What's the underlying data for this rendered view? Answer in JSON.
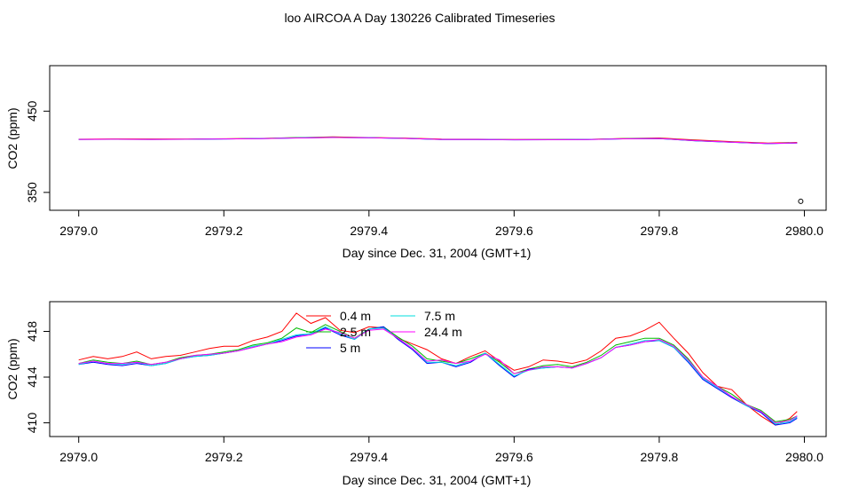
{
  "title": "loo AIRCOA A  Day 130226  Calibrated Timeseries",
  "chart_data": [
    {
      "type": "line",
      "title": "",
      "xlabel": "Day since Dec. 31, 2004 (GMT+1)",
      "ylabel": "CO2 (ppm)",
      "xlim": [
        2978.96,
        2980.03
      ],
      "ylim": [
        328,
        506
      ],
      "xticks": [
        2979.0,
        2979.2,
        2979.4,
        2979.6,
        2979.8,
        2980.0
      ],
      "xtick_labels": [
        "2979.0",
        "2979.2",
        "2979.4",
        "2979.6",
        "2979.8",
        "2980.0"
      ],
      "yticks": [
        350,
        450
      ],
      "ytick_labels": [
        "350",
        "450"
      ],
      "grid": false,
      "outlier": {
        "x": 2979.995,
        "y": 339
      },
      "series": [
        {
          "color": "#ff0000",
          "x": [
            2979.0,
            2979.05,
            2979.1,
            2979.15,
            2979.2,
            2979.25,
            2979.3,
            2979.35,
            2979.4,
            2979.45,
            2979.5,
            2979.55,
            2979.6,
            2979.65,
            2979.7,
            2979.75,
            2979.8,
            2979.85,
            2979.9,
            2979.95,
            2979.99
          ],
          "y": [
            415.5,
            415.8,
            415.8,
            415.6,
            416.0,
            416.4,
            417.3,
            418.3,
            417.6,
            416.9,
            415.6,
            415.5,
            415.0,
            415.2,
            415.3,
            416.3,
            417.0,
            414.5,
            412.5,
            410.8,
            411.5
          ]
        },
        {
          "color": "#00bb00",
          "x": [
            2979.0,
            2979.05,
            2979.1,
            2979.15,
            2979.2,
            2979.25,
            2979.3,
            2979.35,
            2979.4,
            2979.45,
            2979.5,
            2979.55,
            2979.6,
            2979.65,
            2979.7,
            2979.75,
            2979.8,
            2979.85,
            2979.9,
            2979.95,
            2979.99
          ],
          "y": [
            415.3,
            415.5,
            415.4,
            415.5,
            415.9,
            416.3,
            417.6,
            417.9,
            417.4,
            416.6,
            415.2,
            415.3,
            414.9,
            415.0,
            415.2,
            416.1,
            416.4,
            413.8,
            411.9,
            410.2,
            411.0
          ]
        },
        {
          "color": "#0000ff",
          "x": [
            2979.0,
            2979.05,
            2979.1,
            2979.15,
            2979.2,
            2979.25,
            2979.3,
            2979.35,
            2979.4,
            2979.45,
            2979.5,
            2979.55,
            2979.6,
            2979.65,
            2979.7,
            2979.75,
            2979.8,
            2979.85,
            2979.9,
            2979.95,
            2979.99
          ],
          "y": [
            415.2,
            415.4,
            415.2,
            415.4,
            415.8,
            416.2,
            417.0,
            417.7,
            417.3,
            416.4,
            415.0,
            415.1,
            414.7,
            414.8,
            415.0,
            415.9,
            416.2,
            413.5,
            411.7,
            410.0,
            410.8
          ]
        },
        {
          "color": "#00dddd",
          "x": [
            2979.0,
            2979.05,
            2979.1,
            2979.15,
            2979.2,
            2979.25,
            2979.3,
            2979.35,
            2979.4,
            2979.45,
            2979.5,
            2979.55,
            2979.6,
            2979.65,
            2979.7,
            2979.75,
            2979.8,
            2979.85,
            2979.9,
            2979.95,
            2979.99
          ],
          "y": [
            415.2,
            415.4,
            415.3,
            415.4,
            415.8,
            416.2,
            417.1,
            417.7,
            417.3,
            416.4,
            415.1,
            415.2,
            414.8,
            414.9,
            415.0,
            415.9,
            416.2,
            413.6,
            411.8,
            410.1,
            410.9
          ]
        },
        {
          "color": "#ff00ff",
          "x": [
            2979.0,
            2979.05,
            2979.1,
            2979.15,
            2979.2,
            2979.25,
            2979.3,
            2979.35,
            2979.4,
            2979.45,
            2979.5,
            2979.55,
            2979.6,
            2979.65,
            2979.7,
            2979.75,
            2979.8,
            2979.85,
            2979.9,
            2979.95,
            2979.99
          ],
          "y": [
            415.3,
            415.5,
            415.3,
            415.5,
            415.8,
            416.2,
            417.0,
            417.6,
            417.2,
            416.5,
            415.2,
            415.2,
            414.9,
            414.9,
            415.1,
            415.9,
            416.3,
            413.7,
            411.8,
            410.2,
            410.9
          ]
        }
      ]
    },
    {
      "type": "line",
      "title": "",
      "xlabel": "Day since Dec. 31, 2004 (GMT+1)",
      "ylabel": "CO2 (ppm)",
      "xlim": [
        2978.96,
        2980.03
      ],
      "ylim": [
        408.8,
        420.6
      ],
      "xticks": [
        2979.0,
        2979.2,
        2979.4,
        2979.6,
        2979.8,
        2980.0
      ],
      "xtick_labels": [
        "2979.0",
        "2979.2",
        "2979.4",
        "2979.6",
        "2979.8",
        "2980.0"
      ],
      "yticks": [
        410,
        414,
        418
      ],
      "ytick_labels": [
        "410",
        "414",
        "418"
      ],
      "grid": false,
      "legend": "top-center",
      "series": [
        {
          "name": "0.4 m",
          "color": "#ff0000",
          "x": [
            2979.0,
            2979.02,
            2979.04,
            2979.06,
            2979.08,
            2979.1,
            2979.12,
            2979.14,
            2979.16,
            2979.18,
            2979.2,
            2979.22,
            2979.24,
            2979.26,
            2979.28,
            2979.3,
            2979.32,
            2979.34,
            2979.36,
            2979.38,
            2979.4,
            2979.42,
            2979.44,
            2979.46,
            2979.48,
            2979.5,
            2979.52,
            2979.54,
            2979.56,
            2979.58,
            2979.6,
            2979.62,
            2979.64,
            2979.66,
            2979.68,
            2979.7,
            2979.72,
            2979.74,
            2979.76,
            2979.78,
            2979.8,
            2979.82,
            2979.84,
            2979.86,
            2979.88,
            2979.9,
            2979.92,
            2979.94,
            2979.96,
            2979.98,
            2979.99
          ],
          "y": [
            415.5,
            415.8,
            415.6,
            415.8,
            416.2,
            415.6,
            415.8,
            415.9,
            416.2,
            416.5,
            416.7,
            416.7,
            417.2,
            417.5,
            418.0,
            419.6,
            418.7,
            419.2,
            418.1,
            417.9,
            418.4,
            418.3,
            417.4,
            416.9,
            416.4,
            415.6,
            415.2,
            415.8,
            416.3,
            415.4,
            414.6,
            414.9,
            415.5,
            415.4,
            415.2,
            415.5,
            416.3,
            417.4,
            417.6,
            418.1,
            418.8,
            417.4,
            416.1,
            414.4,
            413.2,
            412.9,
            411.6,
            410.6,
            409.8,
            410.4,
            411.0
          ]
        },
        {
          "name": "2.5 m",
          "color": "#00bb00",
          "x": [
            2979.0,
            2979.02,
            2979.04,
            2979.06,
            2979.08,
            2979.1,
            2979.12,
            2979.14,
            2979.16,
            2979.18,
            2979.2,
            2979.22,
            2979.24,
            2979.26,
            2979.28,
            2979.3,
            2979.32,
            2979.34,
            2979.36,
            2979.38,
            2979.4,
            2979.42,
            2979.44,
            2979.46,
            2979.48,
            2979.5,
            2979.52,
            2979.54,
            2979.56,
            2979.58,
            2979.6,
            2979.62,
            2979.64,
            2979.66,
            2979.68,
            2979.7,
            2979.72,
            2979.74,
            2979.76,
            2979.78,
            2979.8,
            2979.82,
            2979.84,
            2979.86,
            2979.88,
            2979.9,
            2979.92,
            2979.94,
            2979.96,
            2979.98,
            2979.99
          ],
          "y": [
            415.2,
            415.5,
            415.3,
            415.2,
            415.4,
            415.1,
            415.3,
            415.7,
            415.9,
            416.0,
            416.2,
            416.4,
            416.8,
            417.0,
            417.4,
            418.3,
            417.9,
            418.6,
            418.0,
            417.4,
            418.2,
            418.4,
            417.5,
            416.7,
            415.6,
            415.4,
            415.2,
            415.6,
            416.1,
            415.3,
            414.3,
            414.7,
            415.0,
            415.1,
            414.9,
            415.3,
            415.9,
            416.8,
            417.1,
            417.4,
            417.4,
            416.8,
            415.6,
            414.0,
            413.2,
            412.5,
            411.6,
            411.1,
            410.1,
            410.3,
            410.6
          ]
        },
        {
          "name": "5 m",
          "color": "#0000ff",
          "x": [
            2979.0,
            2979.02,
            2979.04,
            2979.06,
            2979.08,
            2979.1,
            2979.12,
            2979.14,
            2979.16,
            2979.18,
            2979.2,
            2979.22,
            2979.24,
            2979.26,
            2979.28,
            2979.3,
            2979.32,
            2979.34,
            2979.36,
            2979.38,
            2979.4,
            2979.42,
            2979.44,
            2979.46,
            2979.48,
            2979.5,
            2979.52,
            2979.54,
            2979.56,
            2979.58,
            2979.6,
            2979.62,
            2979.64,
            2979.66,
            2979.68,
            2979.7,
            2979.72,
            2979.74,
            2979.76,
            2979.78,
            2979.8,
            2979.82,
            2979.84,
            2979.86,
            2979.88,
            2979.9,
            2979.92,
            2979.94,
            2979.96,
            2979.98,
            2979.99
          ],
          "y": [
            415.1,
            415.3,
            415.1,
            415.0,
            415.2,
            415.0,
            415.2,
            415.6,
            415.8,
            415.9,
            416.1,
            416.3,
            416.6,
            416.9,
            417.2,
            417.6,
            417.8,
            418.3,
            417.7,
            417.3,
            418.2,
            418.4,
            417.3,
            416.4,
            415.2,
            415.3,
            414.9,
            415.3,
            416.1,
            415.0,
            414.0,
            414.7,
            414.8,
            414.9,
            414.8,
            415.2,
            415.7,
            416.6,
            416.8,
            417.1,
            417.2,
            416.6,
            415.3,
            413.8,
            413.0,
            412.2,
            411.5,
            410.9,
            409.8,
            410.0,
            410.4
          ]
        },
        {
          "name": "7.5 m",
          "color": "#00dddd",
          "x": [
            2979.0,
            2979.02,
            2979.04,
            2979.06,
            2979.08,
            2979.1,
            2979.12,
            2979.14,
            2979.16,
            2979.18,
            2979.2,
            2979.22,
            2979.24,
            2979.26,
            2979.28,
            2979.3,
            2979.32,
            2979.34,
            2979.36,
            2979.38,
            2979.4,
            2979.42,
            2979.44,
            2979.46,
            2979.48,
            2979.5,
            2979.52,
            2979.54,
            2979.56,
            2979.58,
            2979.6,
            2979.62,
            2979.64,
            2979.66,
            2979.68,
            2979.7,
            2979.72,
            2979.74,
            2979.76,
            2979.78,
            2979.8,
            2979.82,
            2979.84,
            2979.86,
            2979.88,
            2979.9,
            2979.92,
            2979.94,
            2979.96,
            2979.98,
            2979.99
          ],
          "y": [
            415.1,
            415.4,
            415.2,
            415.1,
            415.3,
            415.0,
            415.2,
            415.6,
            415.8,
            415.9,
            416.1,
            416.3,
            416.7,
            416.9,
            417.3,
            417.7,
            417.8,
            418.4,
            417.8,
            417.3,
            418.2,
            418.3,
            417.4,
            416.5,
            415.3,
            415.3,
            415.0,
            415.4,
            416.1,
            415.1,
            414.1,
            414.6,
            414.8,
            414.9,
            414.8,
            415.2,
            415.7,
            416.6,
            416.9,
            417.2,
            417.2,
            416.6,
            415.4,
            413.9,
            413.1,
            412.3,
            411.5,
            411.0,
            409.9,
            410.1,
            410.5
          ]
        },
        {
          "name": "24.4 m",
          "color": "#ff00ff",
          "x": [
            2979.0,
            2979.02,
            2979.04,
            2979.06,
            2979.08,
            2979.1,
            2979.12,
            2979.14,
            2979.16,
            2979.18,
            2979.2,
            2979.22,
            2979.24,
            2979.26,
            2979.28,
            2979.3,
            2979.32,
            2979.34,
            2979.36,
            2979.38,
            2979.4,
            2979.42,
            2979.44,
            2979.46,
            2979.48,
            2979.5,
            2979.52,
            2979.54,
            2979.56,
            2979.58,
            2979.6,
            2979.62,
            2979.64,
            2979.66,
            2979.68,
            2979.7,
            2979.72,
            2979.74,
            2979.76,
            2979.78,
            2979.8,
            2979.82,
            2979.84,
            2979.86,
            2979.88,
            2979.9,
            2979.92,
            2979.94,
            2979.96,
            2979.98,
            2979.99
          ],
          "y": [
            415.2,
            415.4,
            415.2,
            415.2,
            415.3,
            415.1,
            415.3,
            415.6,
            415.9,
            416.0,
            416.1,
            416.3,
            416.6,
            416.9,
            417.1,
            417.5,
            417.7,
            418.2,
            417.9,
            417.4,
            418.1,
            418.2,
            417.4,
            416.5,
            415.4,
            415.5,
            415.2,
            415.4,
            416.0,
            415.5,
            414.3,
            414.6,
            414.9,
            414.9,
            414.8,
            415.2,
            415.7,
            416.6,
            416.8,
            417.1,
            417.3,
            416.7,
            415.5,
            414.0,
            413.2,
            412.3,
            411.6,
            411.0,
            410.0,
            410.2,
            410.6
          ]
        }
      ]
    }
  ]
}
